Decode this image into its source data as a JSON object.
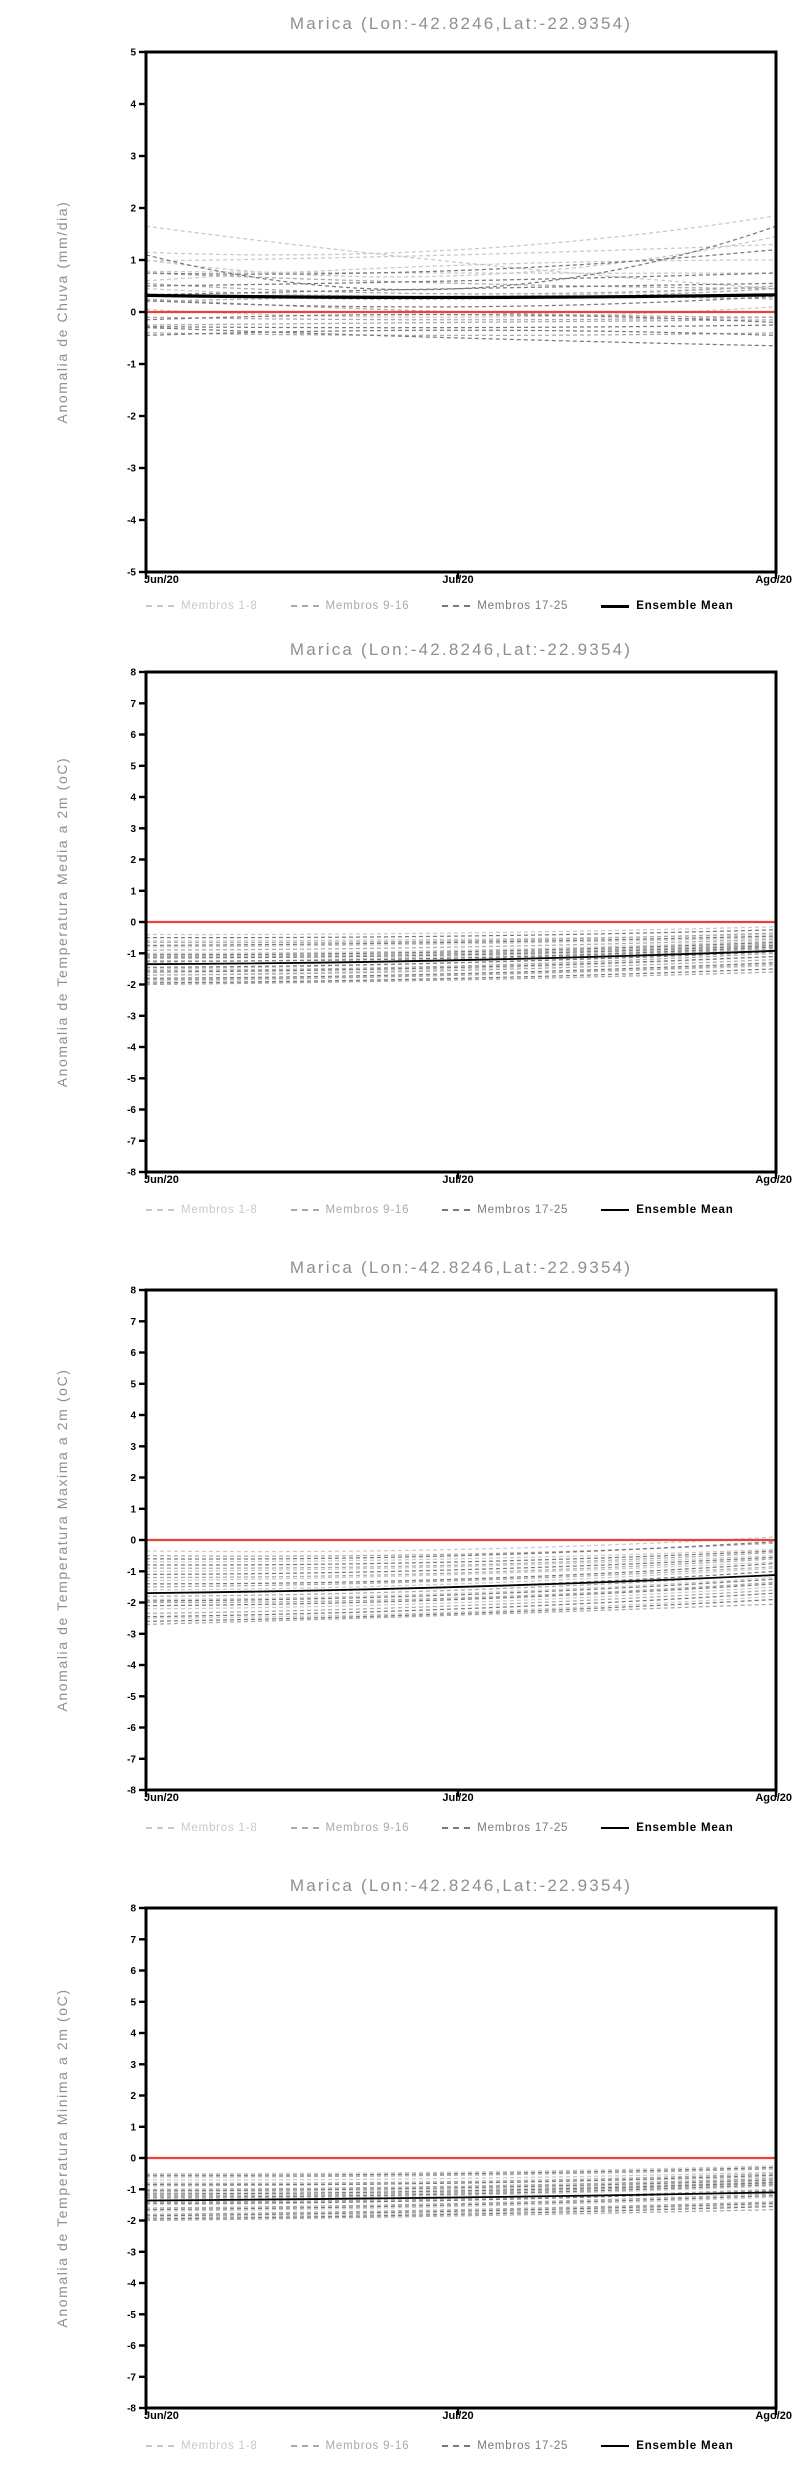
{
  "colors": {
    "background": "#ffffff",
    "title_gray": "#8f8f8f",
    "axis_black": "#000000",
    "zero_line_red": "#e8423a",
    "members_1_8": "#c9c9c9",
    "members_9_16": "#a9a9a9",
    "members_17_25": "#7a7a7a",
    "ensemble_mean": "#000000"
  },
  "legend": {
    "items": [
      {
        "label": "Membros 1-8",
        "color": "#c9c9c9",
        "style": "dashed"
      },
      {
        "label": "Membros 9-16",
        "color": "#a9a9a9",
        "style": "dashed"
      },
      {
        "label": "Membros 17-25",
        "color": "#7a7a7a",
        "style": "dashed"
      },
      {
        "label": "Ensemble Mean",
        "color": "#000000",
        "style": "solid"
      }
    ]
  },
  "chart_data": [
    {
      "type": "line",
      "title": "Marica (Lon:-42.8246,Lat:-22.9354)",
      "ylabel": "Anomalia de Chuva (mm/dia)",
      "x_ticks": [
        "Jun/20",
        "Jul/20",
        "Ago/20"
      ],
      "ylim": [
        -5,
        5
      ],
      "ytick_step": 1,
      "grid": "off",
      "legend_position": "bottom",
      "zero_line": 0,
      "ensemble_mean": [
        0.32,
        0.28,
        0.33
      ],
      "groups": [
        {
          "name": "Membros 1-8",
          "values": [
            [
              1.65,
              0.95,
              0.45
            ],
            [
              1.15,
              1.2,
              1.85
            ],
            [
              1.0,
              0.7,
              1.45
            ],
            [
              0.98,
              1.1,
              1.3
            ],
            [
              0.78,
              0.75,
              0.75
            ],
            [
              0.6,
              0.9,
              1.0
            ],
            [
              0.45,
              0.3,
              0.5
            ],
            [
              0.05,
              -0.1,
              0.1
            ]
          ]
        },
        {
          "name": "Membros 9-16",
          "values": [
            [
              0.75,
              0.55,
              0.45
            ],
            [
              0.55,
              0.35,
              0.5
            ],
            [
              0.35,
              0.25,
              0.45
            ],
            [
              0.25,
              0.0,
              -0.1
            ],
            [
              0.2,
              0.3,
              0.25
            ],
            [
              -0.1,
              -0.15,
              -0.1
            ],
            [
              -0.25,
              -0.2,
              -0.15
            ],
            [
              -0.4,
              -0.45,
              -0.4
            ]
          ]
        },
        {
          "name": "Membros 17-25",
          "values": [
            [
              1.1,
              0.45,
              1.65
            ],
            [
              0.75,
              0.8,
              1.2
            ],
            [
              0.5,
              0.6,
              0.75
            ],
            [
              0.33,
              0.45,
              0.55
            ],
            [
              0.22,
              0.1,
              0.3
            ],
            [
              -0.15,
              -0.05,
              -0.2
            ],
            [
              -0.28,
              -0.3,
              -0.25
            ],
            [
              -0.3,
              -0.5,
              -0.65
            ],
            [
              -0.45,
              -0.35,
              -0.45
            ]
          ]
        }
      ]
    },
    {
      "type": "line",
      "title": "Marica (Lon:-42.8246,Lat:-22.9354)",
      "ylabel": "Anomalia de Temperatura Media a 2m (oC)",
      "x_ticks": [
        "Jun/20",
        "Jul/20",
        "Ago/20"
      ],
      "ylim": [
        -8,
        8
      ],
      "ytick_step": 1,
      "grid": "off",
      "legend_position": "bottom",
      "zero_line": 0,
      "ensemble_mean": [
        -1.35,
        -1.22,
        -0.92
      ],
      "groups": [
        {
          "name": "Membros 1-8",
          "values": [
            [
              -0.4,
              -0.35,
              -0.15
            ],
            [
              -0.6,
              -0.55,
              -0.4
            ],
            [
              -0.8,
              -0.7,
              -0.5
            ],
            [
              -1.0,
              -0.9,
              -0.6
            ],
            [
              -1.3,
              -1.1,
              -0.8
            ],
            [
              -1.5,
              -1.3,
              -0.9
            ],
            [
              -1.7,
              -1.5,
              -1.1
            ],
            [
              -1.9,
              -1.7,
              -1.4
            ]
          ]
        },
        {
          "name": "Membros 9-16",
          "values": [
            [
              -0.65,
              -0.6,
              -0.35
            ],
            [
              -0.9,
              -0.8,
              -0.55
            ],
            [
              -1.1,
              -1.0,
              -0.7
            ],
            [
              -1.35,
              -1.2,
              -0.85
            ],
            [
              -1.55,
              -1.4,
              -1.0
            ],
            [
              -1.7,
              -1.55,
              -1.2
            ],
            [
              -1.85,
              -1.7,
              -1.35
            ],
            [
              -2.0,
              -1.85,
              -1.6
            ]
          ]
        },
        {
          "name": "Membros 17-25",
          "values": [
            [
              -0.5,
              -0.45,
              -0.25
            ],
            [
              -0.75,
              -0.65,
              -0.45
            ],
            [
              -1.05,
              -0.95,
              -0.65
            ],
            [
              -1.15,
              -1.05,
              -0.75
            ],
            [
              -1.25,
              -1.15,
              -0.8
            ],
            [
              -1.45,
              -1.3,
              -0.95
            ],
            [
              -1.6,
              -1.45,
              -1.1
            ],
            [
              -1.8,
              -1.65,
              -1.3
            ],
            [
              -1.95,
              -1.8,
              -1.5
            ]
          ]
        }
      ]
    },
    {
      "type": "line",
      "title": "Marica (Lon:-42.8246,Lat:-22.9354)",
      "ylabel": "Anomalia de Temperatura Maxima a 2m (oC)",
      "x_ticks": [
        "Jun/20",
        "Jul/20",
        "Ago/20"
      ],
      "ylim": [
        -8,
        8
      ],
      "ytick_step": 1,
      "grid": "off",
      "legend_position": "bottom",
      "zero_line": 0,
      "ensemble_mean": [
        -1.7,
        -1.5,
        -1.12
      ],
      "groups": [
        {
          "name": "Membros 1-8",
          "values": [
            [
              -0.35,
              -0.3,
              0.1
            ],
            [
              -0.7,
              -0.6,
              -0.3
            ],
            [
              -1.0,
              -0.85,
              -0.5
            ],
            [
              -1.3,
              -1.1,
              -0.7
            ],
            [
              -1.6,
              -1.4,
              -0.9
            ],
            [
              -1.9,
              -1.7,
              -1.2
            ],
            [
              -2.2,
              -2.0,
              -1.5
            ],
            [
              -2.5,
              -2.3,
              -1.8
            ]
          ]
        },
        {
          "name": "Membros 9-16",
          "values": [
            [
              -0.5,
              -0.45,
              -0.1
            ],
            [
              -0.9,
              -0.8,
              -0.4
            ],
            [
              -1.2,
              -1.05,
              -0.6
            ],
            [
              -1.5,
              -1.3,
              -0.85
            ],
            [
              -1.8,
              -1.6,
              -1.1
            ],
            [
              -2.0,
              -1.85,
              -1.35
            ],
            [
              -2.35,
              -2.1,
              -1.6
            ],
            [
              -2.7,
              -2.4,
              -2.05
            ]
          ]
        },
        {
          "name": "Membros 17-25",
          "values": [
            [
              -0.6,
              -0.5,
              -0.05
            ],
            [
              -0.8,
              -0.7,
              -0.35
            ],
            [
              -1.1,
              -0.95,
              -0.55
            ],
            [
              -1.4,
              -1.25,
              -0.75
            ],
            [
              -1.7,
              -1.5,
              -1.0
            ],
            [
              -1.95,
              -1.75,
              -1.25
            ],
            [
              -2.1,
              -1.9,
              -1.4
            ],
            [
              -2.45,
              -2.2,
              -1.7
            ],
            [
              -2.6,
              -2.35,
              -1.9
            ]
          ]
        }
      ]
    },
    {
      "type": "line",
      "title": "Marica (Lon:-42.8246,Lat:-22.9354)",
      "ylabel": "Anomalia de Temperatura Minima a 2m (oC)",
      "x_ticks": [
        "Jun/20",
        "Jul/20",
        "Ago/20"
      ],
      "ylim": [
        -8,
        8
      ],
      "ytick_step": 1,
      "grid": "off",
      "legend_position": "bottom",
      "zero_line": 0,
      "ensemble_mean": [
        -1.36,
        -1.26,
        -1.1
      ],
      "groups": [
        {
          "name": "Membros 1-8",
          "values": [
            [
              -0.5,
              -0.45,
              -0.25
            ],
            [
              -0.7,
              -0.65,
              -0.45
            ],
            [
              -0.9,
              -0.8,
              -0.6
            ],
            [
              -1.1,
              -1.0,
              -0.75
            ],
            [
              -1.3,
              -1.2,
              -0.9
            ],
            [
              -1.5,
              -1.35,
              -1.05
            ],
            [
              -1.7,
              -1.55,
              -1.25
            ],
            [
              -1.9,
              -1.75,
              -1.5
            ]
          ]
        },
        {
          "name": "Membros 9-16",
          "values": [
            [
              -0.6,
              -0.55,
              -0.35
            ],
            [
              -0.8,
              -0.75,
              -0.5
            ],
            [
              -1.0,
              -0.9,
              -0.65
            ],
            [
              -1.2,
              -1.1,
              -0.8
            ],
            [
              -1.4,
              -1.3,
              -1.0
            ],
            [
              -1.6,
              -1.45,
              -1.15
            ],
            [
              -1.8,
              -1.65,
              -1.4
            ],
            [
              -2.0,
              -1.85,
              -1.65
            ]
          ]
        },
        {
          "name": "Membros 17-25",
          "values": [
            [
              -0.55,
              -0.5,
              -0.3
            ],
            [
              -0.85,
              -0.8,
              -0.55
            ],
            [
              -1.05,
              -0.95,
              -0.7
            ],
            [
              -1.15,
              -1.05,
              -0.78
            ],
            [
              -1.25,
              -1.15,
              -0.85
            ],
            [
              -1.45,
              -1.35,
              -1.05
            ],
            [
              -1.65,
              -1.5,
              -1.2
            ],
            [
              -1.85,
              -1.7,
              -1.45
            ],
            [
              -1.95,
              -1.8,
              -1.55
            ]
          ]
        }
      ]
    }
  ]
}
